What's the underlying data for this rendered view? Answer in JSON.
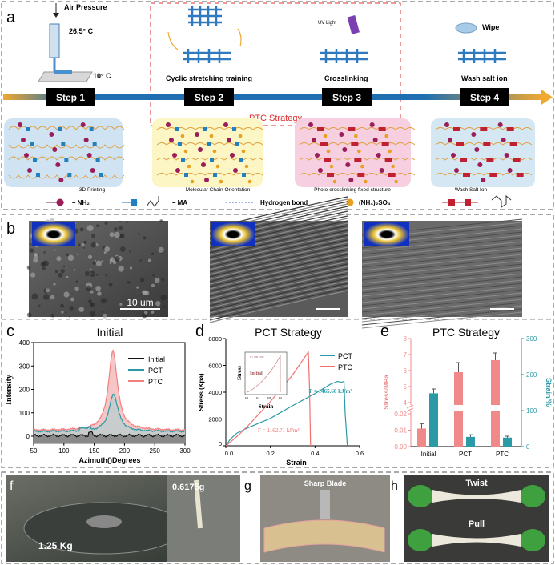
{
  "panel_a": {
    "label": "a",
    "air_pressure": "Air Pressure",
    "temp_nozzle": "26.5° C",
    "temp_bed": "10° C",
    "uv_light": "UV Light",
    "wipe": "Wipe",
    "step_captions": [
      "Cyclic stretching training",
      "Crosslinking",
      "Wash salt ion"
    ],
    "steps": [
      "Step 1",
      "Step 2",
      "Step 3",
      "Step 4"
    ],
    "strategy": "PTC Strategy",
    "stage_labels": [
      "3D Printing",
      "Molecular Chain Orientation",
      "Photo-crosslinking fixed structure",
      "Wash Salt Ion"
    ],
    "legend": {
      "nh2": "– NH₂",
      "ma": "– MA",
      "hbond": "Hydrogen bond",
      "salt": "(NH₄)₂SO₄"
    },
    "colors": {
      "step_box": "#000000",
      "timeline_blue": "#1f6fb0",
      "timeline_orange": "#f0a830",
      "strategy_red": "#e03030",
      "stage1": "#cfe3f3",
      "stage2": "#fbf6c4",
      "stage3": "#f6cfe0",
      "stage4": "#d6e7f4"
    }
  },
  "panel_b": {
    "label": "b",
    "scale_bar": "10 um"
  },
  "chart_data": [
    {
      "panel": "c",
      "type": "line",
      "title": "Initial",
      "xlabel": "Azimuth()Degrees",
      "ylabel": "Intensity",
      "xlim": [
        50,
        300
      ],
      "ylim": [
        -30,
        400
      ],
      "xticks": [
        50,
        100,
        150,
        200,
        250,
        300
      ],
      "yticks": [
        0,
        100,
        200,
        300,
        400
      ],
      "legend_position": "top-right",
      "series": [
        {
          "name": "Initial",
          "color": "#111111",
          "baseline": 3,
          "peak_x": 182,
          "peak_y": 3
        },
        {
          "name": "PCT",
          "color": "#2a9aa6",
          "baseline": 20,
          "peak_x": 182,
          "peak_y": 180
        },
        {
          "name": "PTC",
          "color": "#f08080",
          "baseline": 25,
          "peak_x": 181,
          "peak_y": 365
        }
      ]
    },
    {
      "panel": "d",
      "type": "line",
      "title": "PCT Strategy",
      "xlabel": "Strain",
      "ylabel": "Stress (Kpa)",
      "xlim": [
        0,
        0.6
      ],
      "ylim": [
        0,
        8000
      ],
      "xticks": [
        "0.0",
        "0.2",
        "0.4",
        "0.6"
      ],
      "yticks": [
        0,
        2000,
        4000,
        6000,
        8000
      ],
      "legend_position": "top-right",
      "series": [
        {
          "name": "PCT",
          "color": "#2a9aa6",
          "points": [
            [
              0,
              0
            ],
            [
              0.02,
              500
            ],
            [
              0.05,
              950
            ],
            [
              0.1,
              1350
            ],
            [
              0.2,
              2050
            ],
            [
              0.3,
              3000
            ],
            [
              0.4,
              3900
            ],
            [
              0.47,
              4600
            ],
            [
              0.5,
              4800
            ],
            [
              0.52,
              4750
            ],
            [
              0.53,
              4800
            ],
            [
              0.535,
              2500
            ],
            [
              0.545,
              0
            ]
          ]
        },
        {
          "name": "PTC",
          "color": "#f07070",
          "points": [
            [
              0,
              0
            ],
            [
              0.05,
              700
            ],
            [
              0.1,
              1500
            ],
            [
              0.2,
              3300
            ],
            [
              0.3,
              5300
            ],
            [
              0.37,
              7000
            ],
            [
              0.375,
              4500
            ],
            [
              0.38,
              0
            ]
          ]
        }
      ],
      "annotations": [
        "Γ = 1465.60 kJ/m³",
        "Γ = 1162.71 kJ/m³"
      ],
      "inset": {
        "label": "Initial",
        "xlabel": "Strain",
        "ylabel": "Stress",
        "annotation": "Γ = 3.09 kJ/m³",
        "xticks": [
          "0.0",
          "0.4",
          "0.8",
          "1.2"
        ]
      }
    },
    {
      "panel": "e",
      "type": "bar",
      "title": "PTC Strategy",
      "categories": [
        "Initial",
        "PCT",
        "PTC"
      ],
      "ylabel_left": "Stress/MPa",
      "ylabel_right": "Strain/%",
      "yticks_left_upper": [
        4,
        5,
        6,
        7,
        8
      ],
      "yticks_left_lower": [
        "0.00",
        "0.01",
        "0.02"
      ],
      "yticks_right": [
        0,
        100,
        200,
        300
      ],
      "axis_break": [
        0.02,
        4
      ],
      "series": [
        {
          "name": "Stress/MPa",
          "axis": "left",
          "color": "#f08a8a",
          "values": [
            0.011,
            5.9,
            6.65
          ],
          "errors": [
            0.003,
            0.6,
            0.45
          ]
        },
        {
          "name": "Strain/%",
          "axis": "right",
          "color": "#2a9aa6",
          "values": [
            148,
            27,
            25
          ],
          "errors": [
            12,
            6,
            4
          ]
        }
      ]
    }
  ],
  "panel_f": {
    "label": "f",
    "weight": "1.25 Kg",
    "mass": "0.6175g"
  },
  "panel_g": {
    "label": "g",
    "caption": "Sharp Blade"
  },
  "panel_h": {
    "label": "h",
    "twist": "Twist",
    "pull": "Pull"
  }
}
